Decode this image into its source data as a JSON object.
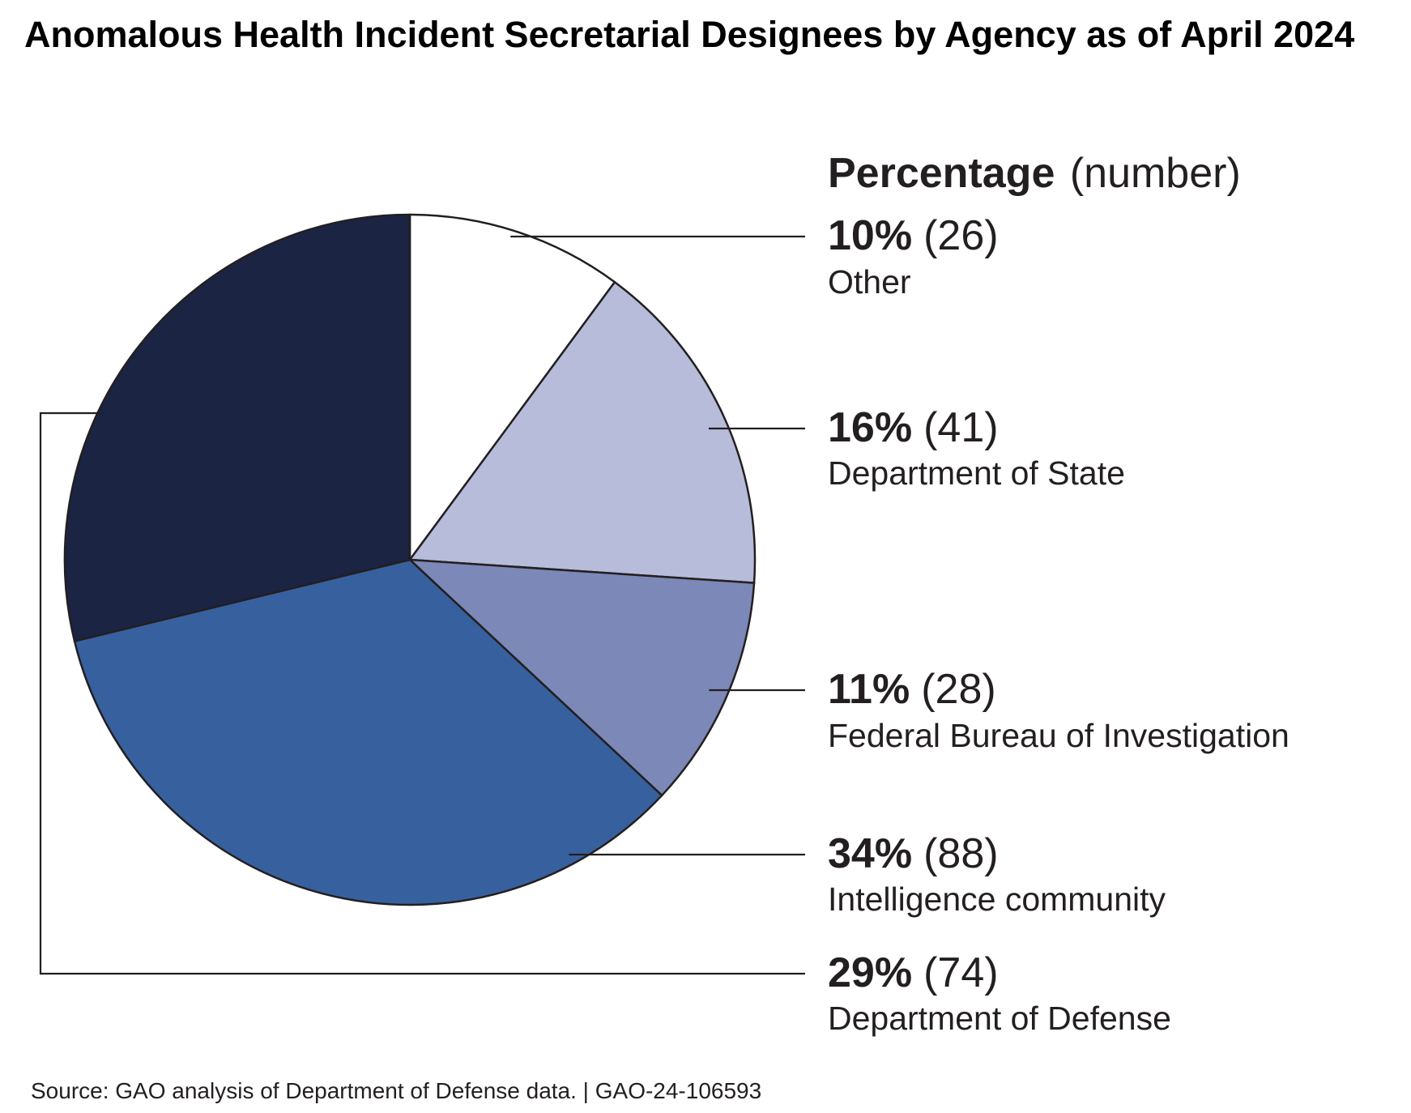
{
  "chart_data": {
    "type": "pie",
    "title": "Anomalous Health Incident Secretarial Designees by Agency as of April 2024",
    "legend_heading": {
      "bold": "Percentage",
      "normal": "(number)"
    },
    "start_angle_deg": 0,
    "direction": "clockwise",
    "slices": [
      {
        "label": "Other",
        "percent_label": "10%",
        "count_label": "(26)",
        "value": 26,
        "color": "#ffffff"
      },
      {
        "label": "Department of State",
        "percent_label": "16%",
        "count_label": "(41)",
        "value": 41,
        "color": "#b6bcda"
      },
      {
        "label": "Federal Bureau of Investigation",
        "percent_label": "11%",
        "count_label": "(28)",
        "value": 28,
        "color": "#7b88b8"
      },
      {
        "label": "Intelligence community",
        "percent_label": "34%",
        "count_label": "(88)",
        "value": 88,
        "color": "#37609e"
      },
      {
        "label": "Department of Defense",
        "percent_label": "29%",
        "count_label": "(74)",
        "value": 74,
        "color": "#1b2443"
      }
    ],
    "source": "Source: GAO analysis of Department of Defense data.  |  GAO-24-106593"
  }
}
